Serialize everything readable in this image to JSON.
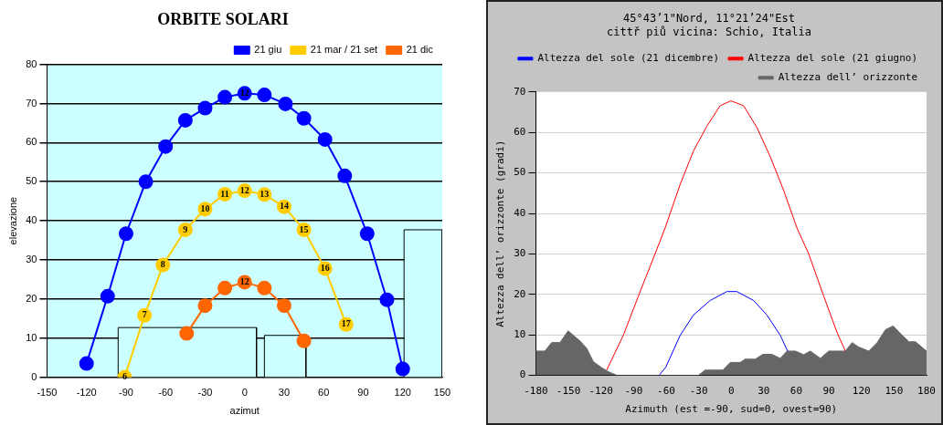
{
  "chart_data": [
    {
      "type": "line",
      "title": "ORBITE SOLARI",
      "xlabel": "azimut",
      "ylabel": "elevazione",
      "xlim": [
        -150,
        150
      ],
      "xticks": [
        -150,
        -120,
        -90,
        -60,
        -30,
        0,
        30,
        60,
        90,
        120,
        150
      ],
      "ylim": [
        0,
        80
      ],
      "yticks": [
        0,
        10,
        20,
        30,
        40,
        50,
        60,
        70,
        80
      ],
      "grid": "y",
      "legend": "top right",
      "series": [
        {
          "name": "21 giu",
          "type": "line",
          "marker": "circle",
          "color": "#0000ff",
          "x": [
            -120,
            -104,
            -90,
            -75,
            -60,
            -45,
            -30,
            -15,
            0,
            15,
            31,
            45,
            61,
            76,
            93,
            108,
            120
          ],
          "values": [
            3.5,
            20.7,
            36.7,
            50,
            59,
            65.7,
            68.8,
            71.6,
            72.6,
            72.2,
            69.9,
            66.2,
            60.8,
            51.5,
            36.7,
            19.8,
            2.1
          ]
        },
        {
          "name": "21 mar / 21 set",
          "type": "line",
          "marker": "circle",
          "color": "#ffcc00",
          "x": [
            -91,
            -76,
            -62,
            -45,
            -30,
            -15,
            0,
            15,
            30,
            45,
            61,
            77
          ],
          "values": [
            0,
            15.8,
            28.7,
            37.7,
            43,
            46.8,
            47.7,
            46.7,
            43.6,
            37.7,
            27.8,
            13.5
          ]
        },
        {
          "name": "21 dic",
          "type": "line",
          "marker": "circle",
          "color": "#ff6600",
          "x": [
            -44,
            -30,
            -15,
            0,
            15,
            30,
            45
          ],
          "values": [
            11.2,
            18.3,
            22.8,
            24.3,
            22.8,
            18.3,
            9.3
          ]
        },
        {
          "type": "area",
          "color": "#ccffff",
          "x": [
            -96,
            -96,
            9,
            9
          ],
          "values": [
            0,
            12.7,
            12.7,
            0
          ]
        },
        {
          "type": "area",
          "color": "#ccffff",
          "x": [
            15,
            15,
            46.5,
            46.5
          ],
          "values": [
            0,
            10.7,
            10.7,
            0
          ]
        },
        {
          "type": "area",
          "color": "#ccffff",
          "x": [
            121,
            121,
            150,
            150
          ],
          "values": [
            0,
            37.7,
            37.7,
            0
          ]
        }
      ],
      "annotations": [
        {
          "text": "6",
          "x": -91,
          "y": 0
        },
        {
          "text": "7",
          "x": -76,
          "y": 15.8
        },
        {
          "text": "8",
          "x": -62,
          "y": 28.7
        },
        {
          "text": "9",
          "x": -45,
          "y": 37.7
        },
        {
          "text": "10",
          "x": -30,
          "y": 43
        },
        {
          "text": "11",
          "x": -15,
          "y": 46.8
        },
        {
          "text": "12",
          "x": 0,
          "y": 47.7
        },
        {
          "text": "13",
          "x": 15,
          "y": 46.7
        },
        {
          "text": "14",
          "x": 30,
          "y": 43.6
        },
        {
          "text": "15",
          "x": 45,
          "y": 37.7
        },
        {
          "text": "16",
          "x": 61,
          "y": 27.8
        },
        {
          "text": "17",
          "x": 77,
          "y": 13.5
        },
        {
          "text": "12",
          "x": 0,
          "y": 72.6
        },
        {
          "text": "12",
          "x": 0,
          "y": 24.3
        }
      ]
    },
    {
      "type": "line",
      "title": "45°43’1\"Nord, 11°21’24\"Est",
      "subtitle": "cittř piů vicina: Schio, Italia",
      "xlabel": "Azimuth (est =-90, sud=0, ovest=90)",
      "ylabel": "Altezza dell’ orizzonte (gradi)",
      "xlim": [
        -180,
        180
      ],
      "xticks": [
        -180,
        -150,
        -120,
        -90,
        -60,
        -30,
        0,
        30,
        60,
        90,
        120,
        150,
        180
      ],
      "ylim": [
        0,
        70
      ],
      "yticks": [
        0,
        10,
        20,
        30,
        40,
        50,
        60,
        70
      ],
      "grid": "y",
      "legend": "top right",
      "series": [
        {
          "name": "Altezza del sole (21 dicembre)",
          "type": "line",
          "color": "#0000ff",
          "x": [
            -66.5,
            -60.3,
            -47,
            -34.8,
            -19.4,
            -4,
            5.2,
            20.6,
            32.9,
            45.2,
            52
          ],
          "values": [
            0,
            2,
            9.9,
            14.9,
            18.5,
            20.7,
            20.7,
            18.5,
            14.9,
            9.9,
            6
          ]
        },
        {
          "name": "Altezza del sole (21 giugno)",
          "type": "line",
          "color": "#ff0000",
          "x": [
            -114.8,
            -99.4,
            -85.5,
            -70.2,
            -60.9,
            -47,
            -34.8,
            -22.5,
            -10.2,
            -0.3,
            11.4,
            23.7,
            36,
            48.3,
            60.6,
            71.4,
            85.2,
            97.5,
            105.2
          ],
          "values": [
            1.3,
            9.9,
            19.6,
            30,
            36.4,
            47.2,
            55.4,
            61.5,
            66.6,
            67.8,
            66.6,
            61.2,
            54,
            45.7,
            36.4,
            30,
            19.6,
            10.6,
            6
          ]
        },
        {
          "name": "Altezza dell’ orizzonte",
          "type": "area",
          "color": "#666666",
          "x": [
            -180,
            -171.7,
            -165.5,
            -157.8,
            -150.2,
            -139.4,
            -133.2,
            -127.1,
            -119.4,
            -113.2,
            -107.1,
            -105.5,
            -30.2,
            -24,
            -7.7,
            -0.9,
            8.3,
            12.9,
            22.2,
            29.2,
            37.5,
            45.2,
            51.4,
            59.1,
            66.8,
            72.9,
            82.2,
            89.8,
            105.2,
            111.4,
            117.5,
            126.8,
            134.5,
            142.2,
            149.2,
            156,
            163.7,
            169.8,
            180
          ],
          "values": [
            6,
            6,
            8.1,
            8.1,
            11,
            8.5,
            6.7,
            3.4,
            1.9,
            0.9,
            0.2,
            0,
            0,
            1.3,
            1.3,
            3.2,
            3.2,
            4,
            4,
            5.2,
            5.2,
            4.2,
            6,
            6,
            5.1,
            6,
            4.2,
            6,
            6,
            8.1,
            7,
            6,
            8.1,
            11.3,
            12.2,
            10.3,
            8.3,
            8.3,
            6
          ]
        }
      ]
    }
  ]
}
